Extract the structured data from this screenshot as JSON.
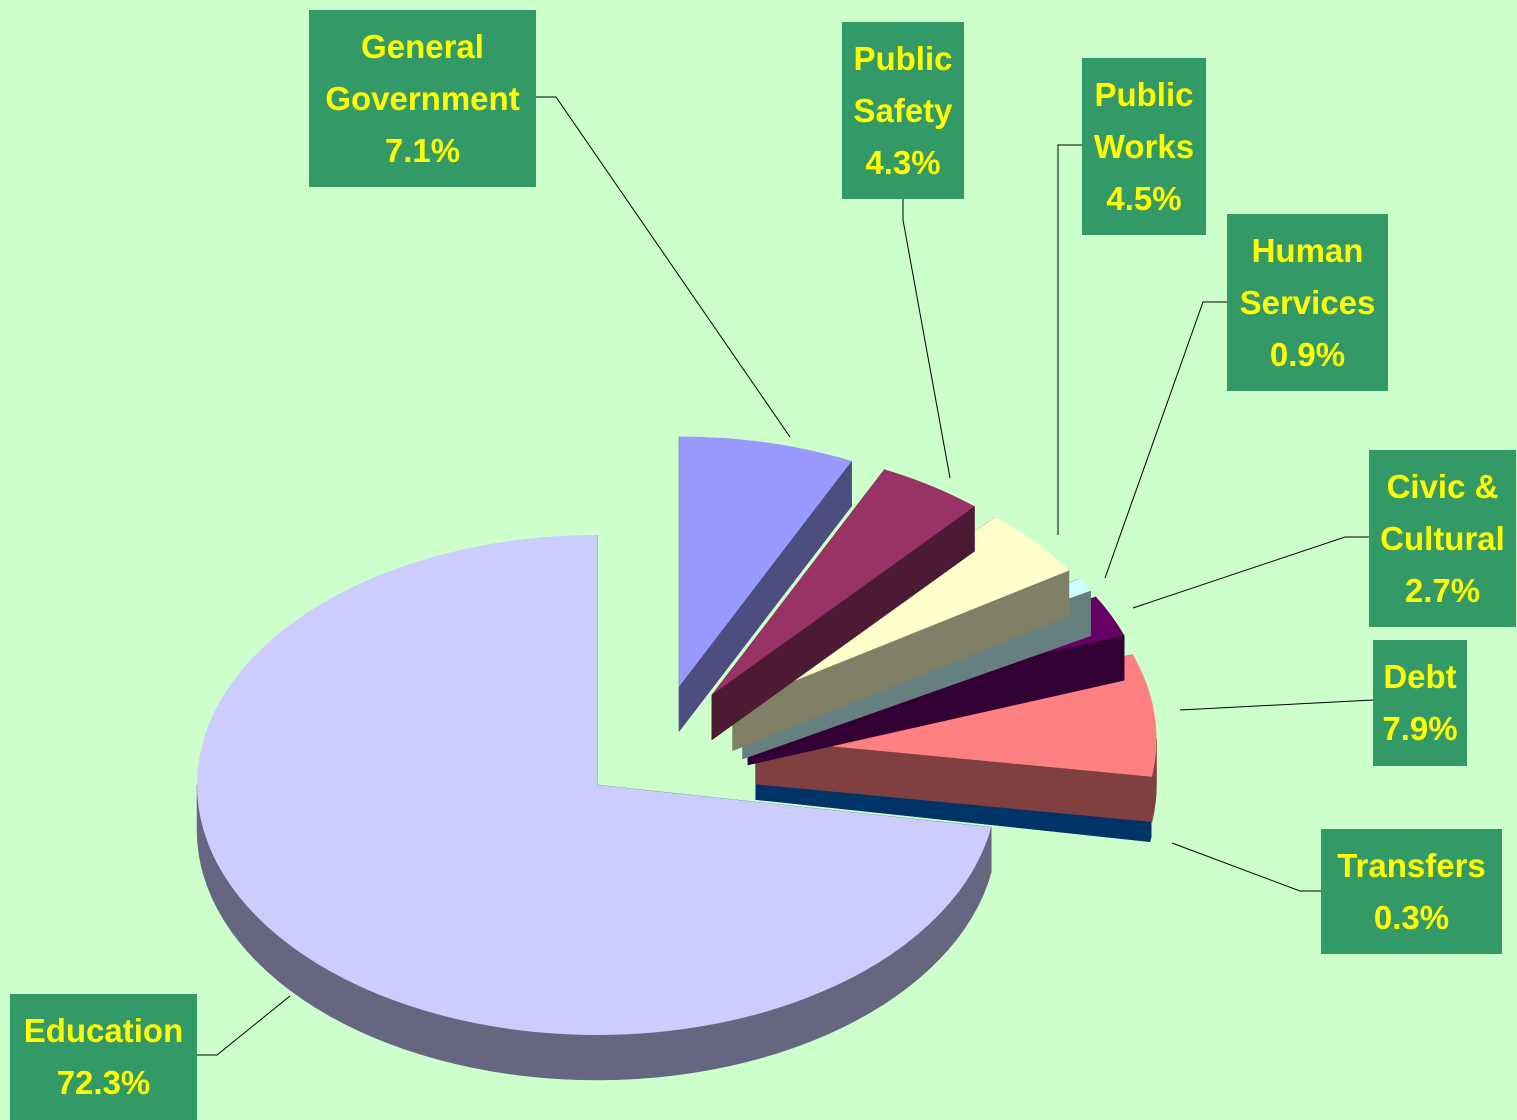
{
  "chart_data": {
    "type": "pie",
    "categories": [
      "General Government",
      "Public Safety",
      "Public Works",
      "Human Services",
      "Civic & Cultural",
      "Debt",
      "Transfers",
      "Education"
    ],
    "values": [
      7.1,
      4.3,
      4.5,
      0.9,
      2.7,
      7.9,
      0.3,
      72.3
    ],
    "value_labels": [
      "7.1%",
      "4.3%",
      "4.5%",
      "0.9%",
      "2.7%",
      "7.9%",
      "0.3%",
      "72.3%"
    ],
    "colors": [
      "#9999ff",
      "#993366",
      "#ffffcc",
      "#ccffff",
      "#660066",
      "#ff8080",
      "#0066cc",
      "#ccccff"
    ]
  }
}
